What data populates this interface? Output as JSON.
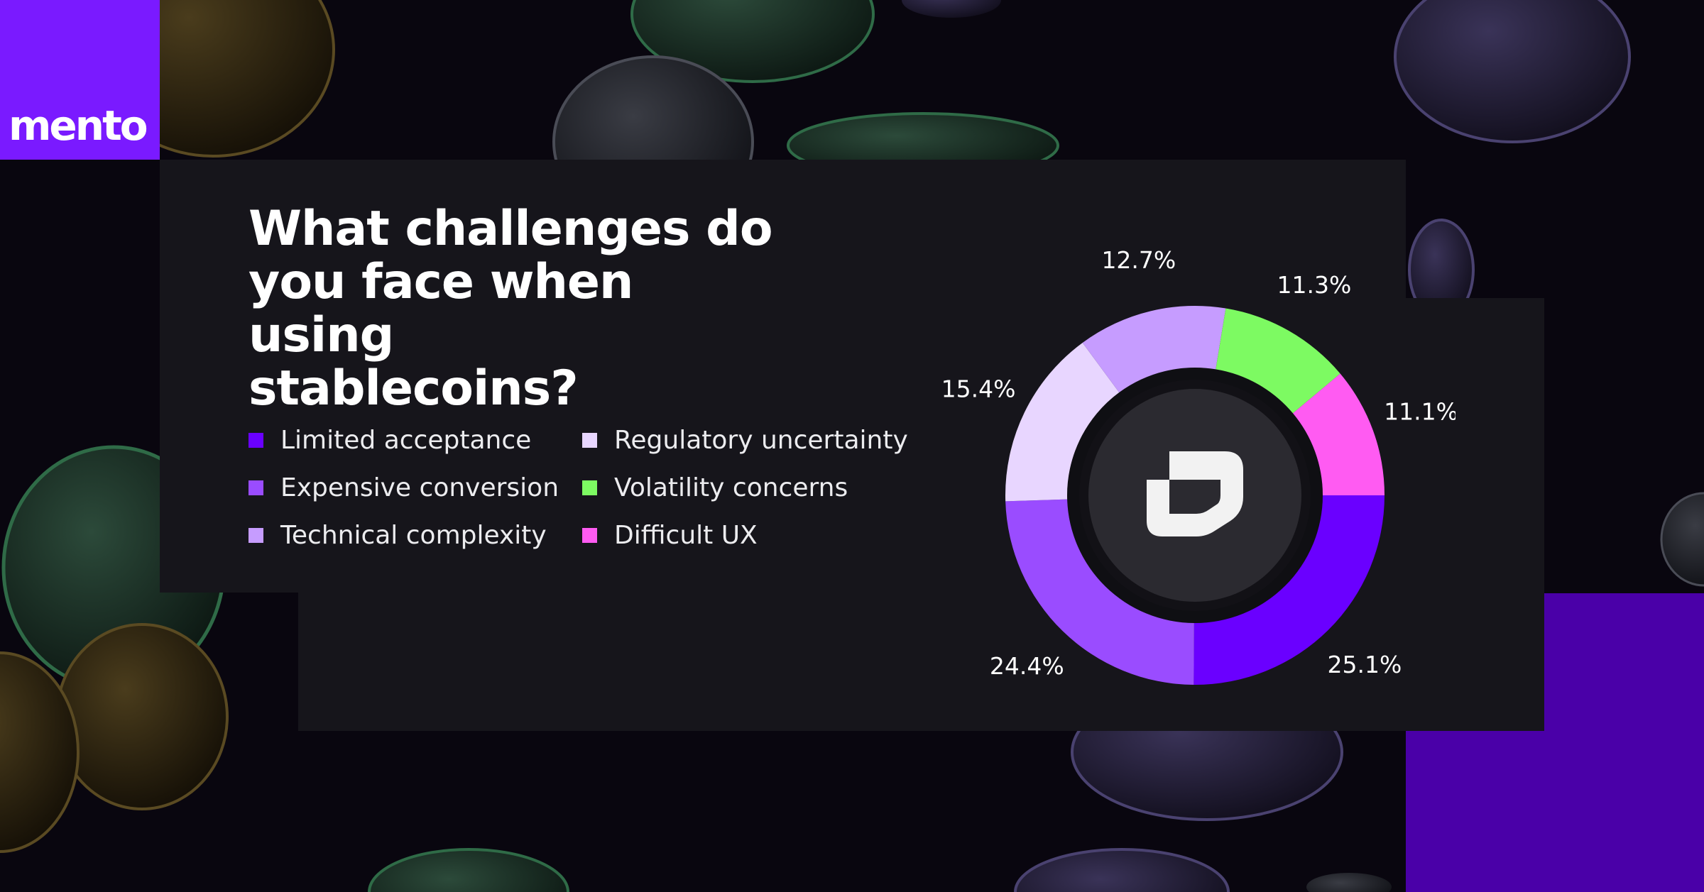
{
  "brand": {
    "name": "mento",
    "accent_color": "#7a1aff",
    "block_color": "#4a00a8"
  },
  "title": "What challenges do you face when using stablecoins?",
  "title_lines": [
    "What challenges do",
    "you face when using",
    "stablecoins?"
  ],
  "chart_data": {
    "type": "pie",
    "style": "donut",
    "title": "What challenges do you face when using stablecoins?",
    "legend_position": "left",
    "center_icon": "mento-logo-icon",
    "slices": [
      {
        "label": "Limited acceptance",
        "value": 25.1,
        "display": "25.1%",
        "color": "#6a00ff"
      },
      {
        "label": "Expensive conversion",
        "value": 24.4,
        "display": "24.4%",
        "color": "#9a4cff"
      },
      {
        "label": "Regulatory uncertainty",
        "value": 15.4,
        "display": "15.4%",
        "color": "#e8d6ff"
      },
      {
        "label": "Technical complexity",
        "value": 12.7,
        "display": "12.7%",
        "color": "#c69cff"
      },
      {
        "label": "Volatility concerns",
        "value": 11.3,
        "display": "11.3%",
        "color": "#7dfa62"
      },
      {
        "label": "Difficult UX",
        "value": 11.1,
        "display": "11.1%",
        "color": "#ff5bf2"
      }
    ],
    "legend_order": [
      "Limited acceptance",
      "Expensive conversion",
      "Technical complexity",
      "Regulatory uncertainty",
      "Volatility concerns",
      "Difficult UX"
    ]
  }
}
